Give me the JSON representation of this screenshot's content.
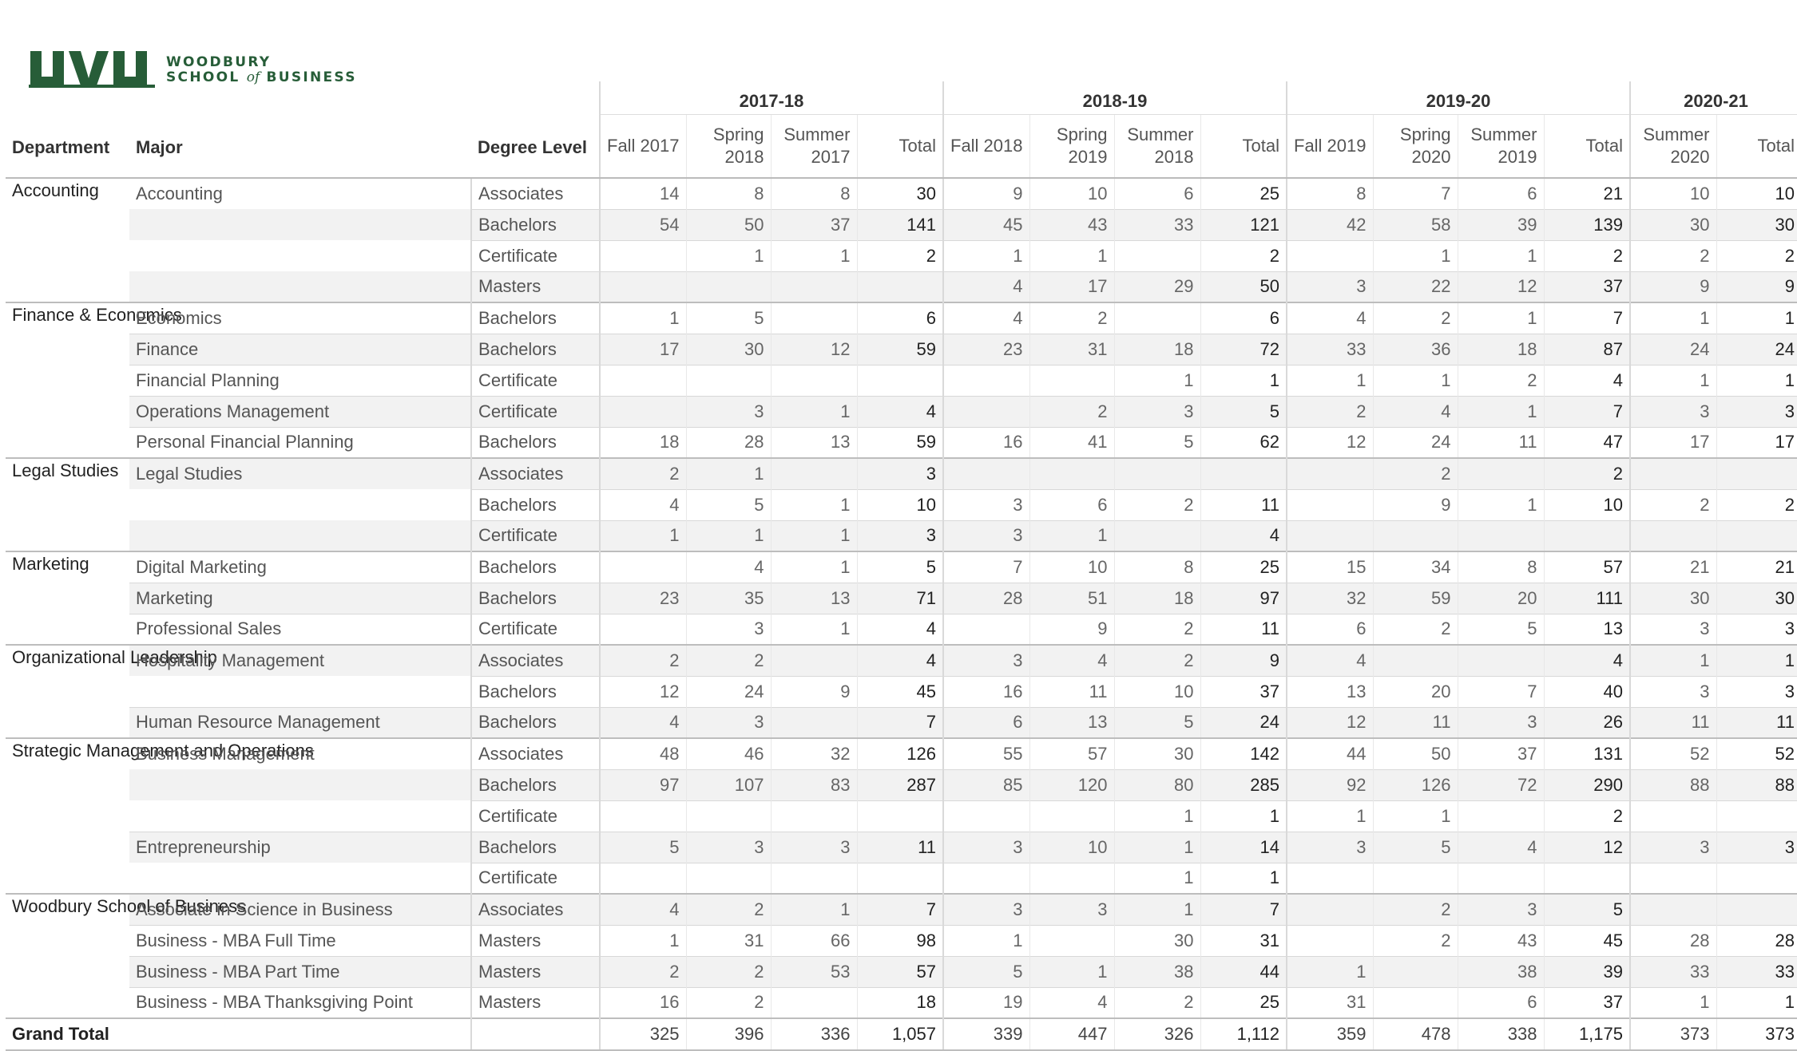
{
  "logo": {
    "mark": "UVU",
    "line1": "WOODBURY",
    "line2_a": "SCHOOL ",
    "line2_of": "of",
    "line2_b": " BUSINESS",
    "color": "#275d38"
  },
  "headers": {
    "department": "Department",
    "major": "Major",
    "degree": "Degree Level",
    "years": [
      {
        "label": "2017-18",
        "cols": [
          "Fall 2017",
          "Spring 2018",
          "Summer 2017",
          "Total"
        ]
      },
      {
        "label": "2018-19",
        "cols": [
          "Fall 2018",
          "Spring 2019",
          "Summer 2018",
          "Total"
        ]
      },
      {
        "label": "2019-20",
        "cols": [
          "Fall 2019",
          "Spring 2020",
          "Summer 2019",
          "Total"
        ]
      },
      {
        "label": "2020-21",
        "cols": [
          "Summer 2020",
          "Total"
        ]
      }
    ]
  },
  "rows": [
    {
      "dept": "Accounting",
      "major": "Accounting",
      "degree": "Associates",
      "v": [
        "14",
        "8",
        "8",
        "30",
        "9",
        "10",
        "6",
        "25",
        "8",
        "7",
        "6",
        "21",
        "10",
        "10"
      ]
    },
    {
      "dept": "",
      "major": "",
      "degree": "Bachelors",
      "v": [
        "54",
        "50",
        "37",
        "141",
        "45",
        "43",
        "33",
        "121",
        "42",
        "58",
        "39",
        "139",
        "30",
        "30"
      ]
    },
    {
      "dept": "",
      "major": "",
      "degree": "Certificate",
      "v": [
        "",
        "1",
        "1",
        "2",
        "1",
        "1",
        "",
        "2",
        "",
        "1",
        "1",
        "2",
        "2",
        "2"
      ]
    },
    {
      "dept": "",
      "major": "",
      "degree": "Masters",
      "v": [
        "",
        "",
        "",
        "",
        "4",
        "17",
        "29",
        "50",
        "3",
        "22",
        "12",
        "37",
        "9",
        "9"
      ]
    },
    {
      "dept": "Finance & Economics",
      "major": "Economics",
      "degree": "Bachelors",
      "v": [
        "1",
        "5",
        "",
        "6",
        "4",
        "2",
        "",
        "6",
        "4",
        "2",
        "1",
        "7",
        "1",
        "1"
      ]
    },
    {
      "dept": "",
      "major": "Finance",
      "degree": "Bachelors",
      "v": [
        "17",
        "30",
        "12",
        "59",
        "23",
        "31",
        "18",
        "72",
        "33",
        "36",
        "18",
        "87",
        "24",
        "24"
      ]
    },
    {
      "dept": "",
      "major": "Financial Planning",
      "degree": "Certificate",
      "v": [
        "",
        "",
        "",
        "",
        "",
        "",
        "1",
        "1",
        "1",
        "1",
        "2",
        "4",
        "1",
        "1"
      ]
    },
    {
      "dept": "",
      "major": "Operations Management",
      "degree": "Certificate",
      "v": [
        "",
        "3",
        "1",
        "4",
        "",
        "2",
        "3",
        "5",
        "2",
        "4",
        "1",
        "7",
        "3",
        "3"
      ]
    },
    {
      "dept": "",
      "major": "Personal Financial Planning",
      "degree": "Bachelors",
      "v": [
        "18",
        "28",
        "13",
        "59",
        "16",
        "41",
        "5",
        "62",
        "12",
        "24",
        "11",
        "47",
        "17",
        "17"
      ]
    },
    {
      "dept": "Legal Studies",
      "major": "Legal Studies",
      "degree": "Associates",
      "v": [
        "2",
        "1",
        "",
        "3",
        "",
        "",
        "",
        "",
        "",
        "2",
        "",
        "2",
        "",
        ""
      ]
    },
    {
      "dept": "",
      "major": "",
      "degree": "Bachelors",
      "v": [
        "4",
        "5",
        "1",
        "10",
        "3",
        "6",
        "2",
        "11",
        "",
        "9",
        "1",
        "10",
        "2",
        "2"
      ]
    },
    {
      "dept": "",
      "major": "",
      "degree": "Certificate",
      "v": [
        "1",
        "1",
        "1",
        "3",
        "3",
        "1",
        "",
        "4",
        "",
        "",
        "",
        "",
        "",
        ""
      ]
    },
    {
      "dept": "Marketing",
      "major": "Digital Marketing",
      "degree": "Bachelors",
      "v": [
        "",
        "4",
        "1",
        "5",
        "7",
        "10",
        "8",
        "25",
        "15",
        "34",
        "8",
        "57",
        "21",
        "21"
      ]
    },
    {
      "dept": "",
      "major": "Marketing",
      "degree": "Bachelors",
      "v": [
        "23",
        "35",
        "13",
        "71",
        "28",
        "51",
        "18",
        "97",
        "32",
        "59",
        "20",
        "111",
        "30",
        "30"
      ]
    },
    {
      "dept": "",
      "major": "Professional Sales",
      "degree": "Certificate",
      "v": [
        "",
        "3",
        "1",
        "4",
        "",
        "9",
        "2",
        "11",
        "6",
        "2",
        "5",
        "13",
        "3",
        "3"
      ]
    },
    {
      "dept": "Organizational Leadership",
      "major": "Hospitality Management",
      "degree": "Associates",
      "v": [
        "2",
        "2",
        "",
        "4",
        "3",
        "4",
        "2",
        "9",
        "4",
        "",
        "",
        "4",
        "1",
        "1"
      ]
    },
    {
      "dept": "",
      "major": "",
      "degree": "Bachelors",
      "v": [
        "12",
        "24",
        "9",
        "45",
        "16",
        "11",
        "10",
        "37",
        "13",
        "20",
        "7",
        "40",
        "3",
        "3"
      ]
    },
    {
      "dept": "",
      "major": "Human Resource Management",
      "degree": "Bachelors",
      "v": [
        "4",
        "3",
        "",
        "7",
        "6",
        "13",
        "5",
        "24",
        "12",
        "11",
        "3",
        "26",
        "11",
        "11"
      ]
    },
    {
      "dept": "Strategic Management and Operations",
      "major": "Business Management",
      "degree": "Associates",
      "v": [
        "48",
        "46",
        "32",
        "126",
        "55",
        "57",
        "30",
        "142",
        "44",
        "50",
        "37",
        "131",
        "52",
        "52"
      ]
    },
    {
      "dept": "",
      "major": "",
      "degree": "Bachelors",
      "v": [
        "97",
        "107",
        "83",
        "287",
        "85",
        "120",
        "80",
        "285",
        "92",
        "126",
        "72",
        "290",
        "88",
        "88"
      ]
    },
    {
      "dept": "",
      "major": "",
      "degree": "Certificate",
      "v": [
        "",
        "",
        "",
        "",
        "",
        "",
        "1",
        "1",
        "1",
        "1",
        "",
        "2",
        "",
        ""
      ]
    },
    {
      "dept": "",
      "major": "Entrepreneurship",
      "degree": "Bachelors",
      "v": [
        "5",
        "3",
        "3",
        "11",
        "3",
        "10",
        "1",
        "14",
        "3",
        "5",
        "4",
        "12",
        "3",
        "3"
      ]
    },
    {
      "dept": "",
      "major": "",
      "degree": "Certificate",
      "v": [
        "",
        "",
        "",
        "",
        "",
        "",
        "1",
        "1",
        "",
        "",
        "",
        "",
        "",
        ""
      ]
    },
    {
      "dept": "Woodbury School of Business",
      "major": "Associate in Science in Business",
      "degree": "Associates",
      "v": [
        "4",
        "2",
        "1",
        "7",
        "3",
        "3",
        "1",
        "7",
        "",
        "2",
        "3",
        "5",
        "",
        ""
      ]
    },
    {
      "dept": "",
      "major": "Business - MBA Full Time",
      "degree": "Masters",
      "v": [
        "1",
        "31",
        "66",
        "98",
        "1",
        "",
        "30",
        "31",
        "",
        "2",
        "43",
        "45",
        "28",
        "28"
      ]
    },
    {
      "dept": "",
      "major": "Business - MBA Part Time",
      "degree": "Masters",
      "v": [
        "2",
        "2",
        "53",
        "57",
        "5",
        "1",
        "38",
        "44",
        "1",
        "",
        "38",
        "39",
        "33",
        "33"
      ]
    },
    {
      "dept": "",
      "major": "Business - MBA Thanksgiving Point",
      "degree": "Masters",
      "v": [
        "16",
        "2",
        "",
        "18",
        "19",
        "4",
        "2",
        "25",
        "31",
        "",
        "6",
        "37",
        "1",
        "1"
      ]
    }
  ],
  "grand_total": {
    "label": "Grand Total",
    "v": [
      "325",
      "396",
      "336",
      "1,057",
      "339",
      "447",
      "326",
      "1,112",
      "359",
      "478",
      "338",
      "1,175",
      "373",
      "373"
    ]
  }
}
